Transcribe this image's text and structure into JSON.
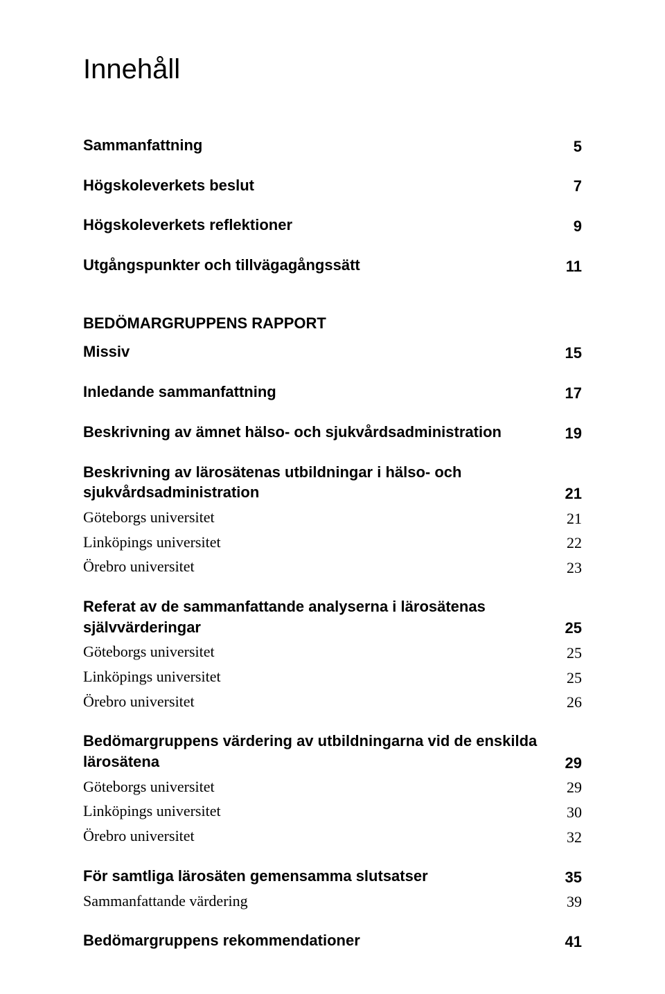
{
  "title": "Innehåll",
  "entries": [
    {
      "label": "Sammanfattning",
      "page": "5",
      "style": "bold"
    },
    {
      "label": "Högskoleverkets beslut",
      "page": "7",
      "style": "bold",
      "gap_before": "md"
    },
    {
      "label": "Högskoleverkets reflektioner",
      "page": "9",
      "style": "bold",
      "gap_before": "md"
    },
    {
      "label": "Utgångspunkter och tillvägagångssätt",
      "page": "11",
      "style": "bold",
      "gap_before": "md"
    },
    {
      "label": "BEDÖMARGRUPPENS RAPPORT",
      "page": "",
      "style": "section",
      "gap_before": "lg"
    },
    {
      "label": "Missiv",
      "page": "15",
      "style": "bold",
      "gap_before": "sm"
    },
    {
      "label": "Inledande sammanfattning",
      "page": "17",
      "style": "bold",
      "gap_before": "md"
    },
    {
      "label": "Beskrivning av ämnet hälso- och sjukvårdsadministration",
      "page": "19",
      "style": "bold",
      "gap_before": "md"
    },
    {
      "label": "Beskrivning av lärosätenas utbildningar i hälso- och sjukvårdsadministration",
      "page": "21",
      "style": "bold",
      "gap_before": "md"
    },
    {
      "label": "Göteborgs universitet",
      "page": "21",
      "style": "reg"
    },
    {
      "label": "Linköpings universitet",
      "page": "22",
      "style": "reg"
    },
    {
      "label": "Örebro universitet",
      "page": "23",
      "style": "reg"
    },
    {
      "label": "Referat av de sammanfattande analyserna i lärosätenas självvärderingar",
      "page": "25",
      "style": "bold",
      "gap_before": "md"
    },
    {
      "label": "Göteborgs universitet",
      "page": "25",
      "style": "reg"
    },
    {
      "label": "Linköpings universitet",
      "page": "25",
      "style": "reg"
    },
    {
      "label": "Örebro universitet",
      "page": "26",
      "style": "reg"
    },
    {
      "label": "Bedömargruppens värdering av utbildningarna vid de enskilda lärosätena",
      "page": "29",
      "style": "bold",
      "gap_before": "md"
    },
    {
      "label": "Göteborgs universitet",
      "page": "29",
      "style": "reg"
    },
    {
      "label": "Linköpings universitet",
      "page": "30",
      "style": "reg"
    },
    {
      "label": "Örebro universitet",
      "page": "32",
      "style": "reg"
    },
    {
      "label": "För samtliga lärosäten gemensamma slutsatser",
      "page": "35",
      "style": "bold",
      "gap_before": "md"
    },
    {
      "label": "Sammanfattande värdering",
      "page": "39",
      "style": "reg"
    },
    {
      "label": "Bedömargruppens rekommendationer",
      "page": "41",
      "style": "bold",
      "gap_before": "md"
    }
  ]
}
